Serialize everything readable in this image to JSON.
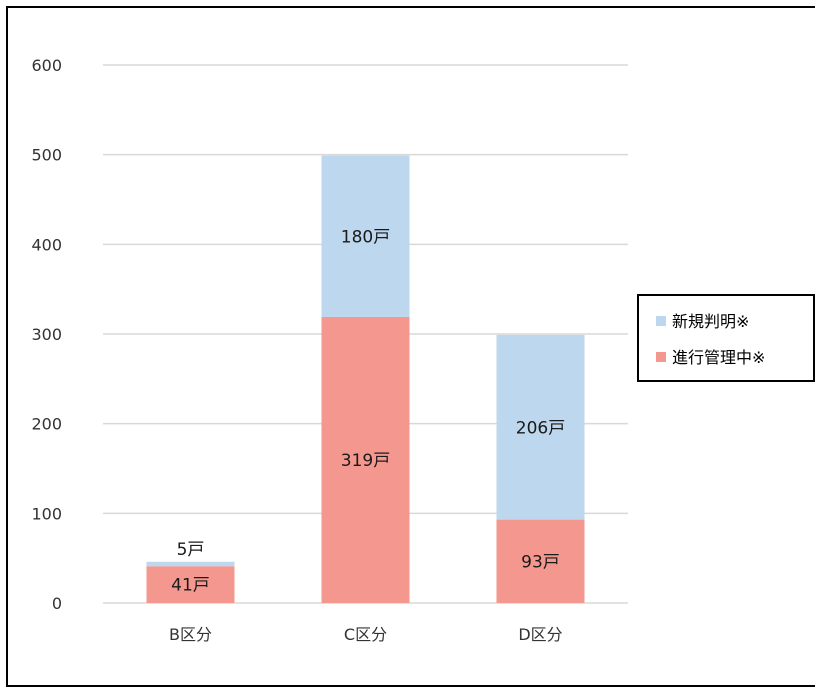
{
  "chart_data": {
    "type": "bar",
    "stacked": true,
    "title": "",
    "xlabel": "",
    "ylabel": "",
    "categories": [
      "B区分",
      "C区分",
      "D区分"
    ],
    "ylim": [
      0,
      600
    ],
    "yticks": [
      0,
      100,
      200,
      300,
      400,
      500,
      600
    ],
    "grid": true,
    "legend_position": "right",
    "series": [
      {
        "name": "進行管理中※",
        "color": "#f4978e",
        "values": [
          41,
          319,
          93
        ],
        "labels": [
          "41戸",
          "319戸",
          "93戸"
        ]
      },
      {
        "name": "新規判明※",
        "color": "#bdd7ee",
        "values": [
          5,
          180,
          206
        ],
        "labels": [
          "5戸",
          "180戸",
          "206戸"
        ]
      }
    ],
    "legend_order": [
      1,
      0
    ]
  }
}
